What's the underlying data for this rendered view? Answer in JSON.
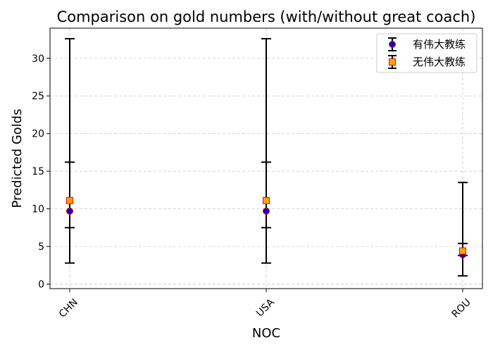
{
  "chart_data": {
    "type": "scatter",
    "title": "Comparison on gold numbers (with/without great coach)",
    "xlabel": "NOC",
    "ylabel": "Predicted Golds",
    "categories": [
      "CHN",
      "USA",
      "ROU"
    ],
    "ylim": [
      -0.6,
      34.0
    ],
    "yticks": [
      0,
      5,
      10,
      15,
      20,
      25,
      30
    ],
    "grid": true,
    "legend_position": "top-right",
    "series": [
      {
        "name": "有伟大教练",
        "marker": "circle",
        "marker_color": "#0000cc",
        "edge_color": "#ff0000",
        "values": [
          9.7,
          9.7,
          3.9
        ],
        "lower": [
          2.8,
          2.8,
          1.1
        ],
        "upper": [
          16.2,
          16.2,
          5.4
        ]
      },
      {
        "name": "无伟大教练",
        "marker": "square",
        "marker_color": "#ffa500",
        "edge_color": "#ff0000",
        "values": [
          11.1,
          11.1,
          4.4
        ],
        "lower": [
          7.5,
          7.5,
          3.8
        ],
        "upper": [
          32.6,
          32.6,
          13.5
        ]
      }
    ]
  }
}
